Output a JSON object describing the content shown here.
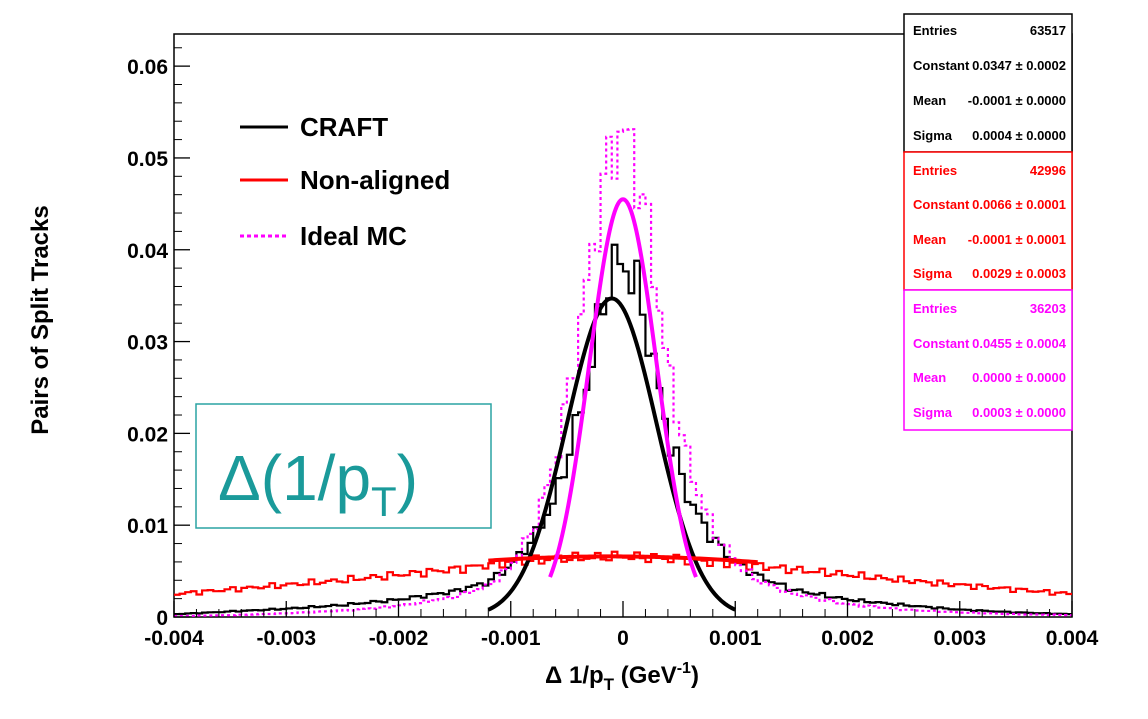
{
  "chart_data": {
    "type": "line",
    "xlabel": "Δ 1/p",
    "xlabel_sub": "T",
    "xlabel_unit_open": " (GeV",
    "xlabel_unit_sup": "-1",
    "xlabel_unit_close": ")",
    "ylabel": "Pairs of Split Tracks",
    "xlim": [
      -0.004,
      0.004
    ],
    "ylim": [
      0,
      0.0635
    ],
    "x_tick_labels": [
      "-0.004",
      "-0.003",
      "-0.002",
      "-0.001",
      "0",
      "0.001",
      "0.002",
      "0.003",
      "0.004"
    ],
    "x_ticks": [
      -0.004,
      -0.003,
      -0.002,
      -0.001,
      0,
      0.001,
      0.002,
      0.003,
      0.004
    ],
    "y_tick_labels": [
      "0",
      "0.01",
      "0.02",
      "0.03",
      "0.04",
      "0.05",
      "0.06"
    ],
    "y_ticks": [
      0,
      0.01,
      0.02,
      0.03,
      0.04,
      0.05,
      0.06
    ],
    "grid": false,
    "legend_position": "top-left",
    "annotation": {
      "main": "Δ(1/p",
      "sub": "T",
      "close": ")",
      "color": "#1a9a9a"
    },
    "series": [
      {
        "name": "CRAFT",
        "color": "#000000",
        "style": "solid",
        "histogram_x": [
          -0.004,
          -0.0035,
          -0.003,
          -0.0025,
          -0.002,
          -0.0015,
          -0.0012,
          -0.001,
          -0.0008,
          -0.0006,
          -0.0004,
          -0.0003,
          -0.0002,
          -0.0001,
          0,
          0.0001,
          0.0002,
          0.0003,
          0.0004,
          0.0006,
          0.0008,
          0.001,
          0.0012,
          0.0015,
          0.002,
          0.0025,
          0.003,
          0.0035,
          0.004
        ],
        "histogram_y": [
          0.0003,
          0.0006,
          0.0009,
          0.0013,
          0.0019,
          0.0028,
          0.0038,
          0.0056,
          0.0085,
          0.013,
          0.0215,
          0.0265,
          0.033,
          0.038,
          0.0385,
          0.037,
          0.032,
          0.026,
          0.02,
          0.0125,
          0.0085,
          0.006,
          0.0045,
          0.003,
          0.0019,
          0.0013,
          0.0008,
          0.0005,
          0.0003
        ],
        "fit": {
          "entries": "63517",
          "constant": "0.0347 ± 0.0002",
          "mean": "-0.0001 ± 0.0000",
          "sigma": "0.0004 ± 0.0000",
          "constant_value": 0.0347,
          "mean_value": -0.0001,
          "sigma_value": 0.0004
        }
      },
      {
        "name": "Non-aligned",
        "color": "#ff0000",
        "style": "solid",
        "histogram_x": [
          -0.004,
          -0.0035,
          -0.003,
          -0.0025,
          -0.002,
          -0.0015,
          -0.001,
          -0.0005,
          0,
          0.0005,
          0.001,
          0.0015,
          0.002,
          0.0025,
          0.003,
          0.0035,
          0.004
        ],
        "histogram_y": [
          0.0025,
          0.003,
          0.0035,
          0.004,
          0.0046,
          0.0052,
          0.006,
          0.0064,
          0.0066,
          0.0063,
          0.0058,
          0.0052,
          0.0046,
          0.004,
          0.0035,
          0.003,
          0.0025
        ],
        "fit": {
          "entries": "42996",
          "constant": "0.0066 ± 0.0001",
          "mean": "-0.0001 ± 0.0001",
          "sigma": "0.0029 ± 0.0003",
          "constant_value": 0.0066,
          "mean_value": -0.0001,
          "sigma_value": 0.0029
        }
      },
      {
        "name": "Ideal MC",
        "color": "#ff00ff",
        "style": "dotted",
        "histogram_x": [
          -0.004,
          -0.0035,
          -0.003,
          -0.0025,
          -0.002,
          -0.0015,
          -0.0012,
          -0.001,
          -0.0008,
          -0.0006,
          -0.0004,
          -0.0003,
          -0.0002,
          -0.0001,
          0,
          0.0001,
          0.0002,
          0.0003,
          0.0004,
          0.0006,
          0.0008,
          0.001,
          0.0012,
          0.0015,
          0.002,
          0.0025,
          0.003,
          0.0035,
          0.004
        ],
        "histogram_y": [
          0.0001,
          0.0002,
          0.0004,
          0.0007,
          0.0012,
          0.0022,
          0.0034,
          0.0055,
          0.0095,
          0.017,
          0.03,
          0.038,
          0.045,
          0.051,
          0.053,
          0.05,
          0.044,
          0.036,
          0.027,
          0.016,
          0.0095,
          0.006,
          0.004,
          0.0026,
          0.0014,
          0.0008,
          0.0005,
          0.0003,
          0.0002
        ],
        "fit": {
          "entries": "36203",
          "constant": "0.0455 ± 0.0004",
          "mean": "0.0000 ± 0.0000",
          "sigma": "0.0003 ± 0.0000",
          "constant_value": 0.0455,
          "mean_value": 0.0,
          "sigma_value": 0.0003
        }
      }
    ],
    "stats_labels": {
      "entries": "Entries",
      "constant": "Constant",
      "mean": "Mean",
      "sigma": "Sigma"
    }
  }
}
